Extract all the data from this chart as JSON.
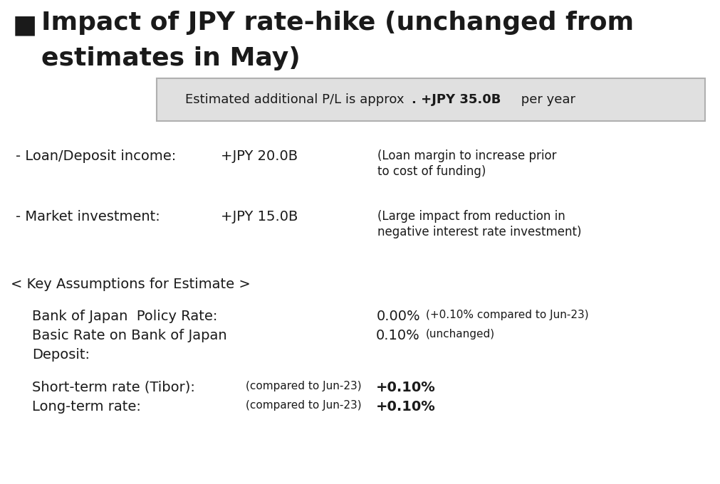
{
  "bg_color": "#ffffff",
  "title_color": "#1a1a1a",
  "title_fontsize": 26,
  "title_line1": "Impact of JPY rate-hike (unchanged from",
  "title_line2": "estimates in May)",
  "box_text_normal": "Estimated additional P/L is approx",
  "box_text_period_bold": ". +JPY 35.0B",
  "box_text_end": " per year",
  "box_bg": "#e0e0e0",
  "box_border": "#b0b0b0",
  "item1_label": "- Loan/Deposit income:",
  "item1_value": "+JPY 20.0B",
  "item1_note1": "(Loan margin to increase prior",
  "item1_note2": "to cost of funding)",
  "item2_label": "- Market investment:",
  "item2_value": "+JPY 15.0B",
  "item2_note1": "(Large impact from reduction in",
  "item2_note2": "negative interest rate investment)",
  "section_header": "< Key Assumptions for Estimate >",
  "a1_label": "Bank of Japan  Policy Rate:",
  "a1_value": "0.00%",
  "a1_note": "(+0.10% compared to Jun-23)",
  "a2_label": "Basic Rate on Bank of Japan",
  "a2_label2": "Deposit:",
  "a2_value": "0.10%",
  "a2_note": "(unchanged)",
  "a3_label": "Short-term rate (Tibor):",
  "a3_compare": "(compared to Jun-23)",
  "a3_value": "+0.10%",
  "a4_label": "Long-term rate:",
  "a4_compare": "(compared to Jun-23)",
  "a4_value": "+0.10%",
  "fs_title": 26,
  "fs_body": 14,
  "fs_value": 14,
  "fs_note": 12,
  "fs_small": 11,
  "fs_section": 14
}
